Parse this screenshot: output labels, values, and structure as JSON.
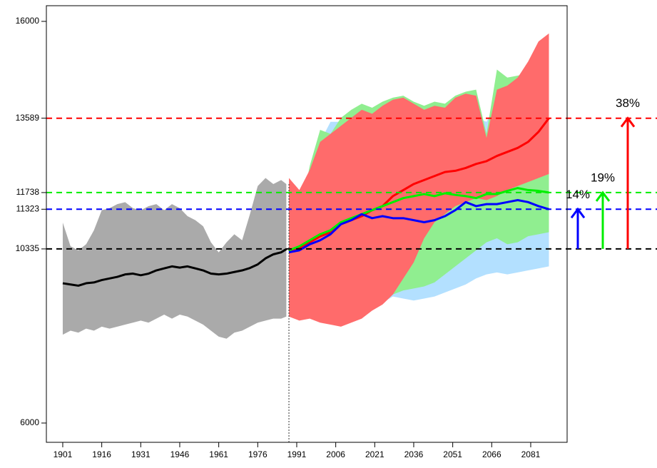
{
  "chart_data": {
    "type": "line",
    "xlim": [
      1894.7,
      2095
    ],
    "ylim": [
      5520,
      16390
    ],
    "xticks": [
      1901,
      1916,
      1931,
      1946,
      1961,
      1976,
      1991,
      2006,
      2021,
      2036,
      2051,
      2066,
      2081
    ],
    "yticks": [
      6000,
      10335,
      11323,
      11738,
      13589,
      16000
    ],
    "divider_x": 1988,
    "history": {
      "color": "#000000",
      "band_color": "#aaaaaa",
      "x": [
        1901,
        1904,
        1907,
        1910,
        1913,
        1916,
        1919,
        1922,
        1925,
        1928,
        1931,
        1934,
        1937,
        1940,
        1943,
        1946,
        1949,
        1952,
        1955,
        1958,
        1961,
        1964,
        1967,
        1970,
        1973,
        1976,
        1979,
        1982,
        1985,
        1987
      ],
      "values": [
        9480,
        9450,
        9420,
        9480,
        9500,
        9560,
        9600,
        9640,
        9700,
        9720,
        9680,
        9720,
        9800,
        9850,
        9900,
        9870,
        9900,
        9850,
        9800,
        9720,
        9700,
        9720,
        9760,
        9800,
        9860,
        9950,
        10100,
        10200,
        10250,
        10330
      ],
      "upper": [
        10990,
        10400,
        10300,
        10450,
        10800,
        11300,
        11350,
        11450,
        11500,
        11350,
        11300,
        11400,
        11450,
        11300,
        11450,
        11350,
        11150,
        11050,
        10900,
        10500,
        10250,
        10500,
        10700,
        10550,
        11200,
        11900,
        12100,
        11950,
        12050,
        11950
      ],
      "lower": [
        8200,
        8300,
        8250,
        8350,
        8300,
        8400,
        8350,
        8400,
        8450,
        8500,
        8550,
        8500,
        8600,
        8700,
        8600,
        8700,
        8650,
        8550,
        8450,
        8300,
        8150,
        8100,
        8250,
        8300,
        8400,
        8500,
        8550,
        8600,
        8600,
        8650
      ]
    },
    "future_x": [
      1988,
      1992,
      1996,
      2000,
      2004,
      2008,
      2012,
      2016,
      2020,
      2024,
      2028,
      2032,
      2036,
      2040,
      2044,
      2048,
      2052,
      2056,
      2060,
      2064,
      2068,
      2072,
      2076,
      2080,
      2084,
      2088
    ],
    "series": [
      {
        "color": "#0000ff",
        "band_color": "#b3e0ff",
        "values": [
          10250,
          10300,
          10450,
          10550,
          10700,
          10950,
          11050,
          11200,
          11100,
          11150,
          11100,
          11100,
          11050,
          11000,
          11050,
          11150,
          11300,
          11500,
          11400,
          11450,
          11450,
          11500,
          11550,
          11500,
          11400,
          11323
        ],
        "upper": [
          11200,
          11000,
          12200,
          13000,
          13500,
          13500,
          13700,
          13800,
          13700,
          13800,
          13900,
          13950,
          13850,
          13700,
          13800,
          13850,
          14000,
          14100,
          13600,
          13500,
          14000,
          14100,
          14200,
          14300,
          14400,
          14500
        ],
        "lower": [
          8700,
          8600,
          8650,
          8550,
          8500,
          8450,
          8550,
          8650,
          8850,
          9000,
          9150,
          9100,
          9050,
          9100,
          9150,
          9250,
          9350,
          9450,
          9600,
          9700,
          9750,
          9700,
          9750,
          9800,
          9850,
          9900
        ]
      },
      {
        "color": "#00ee00",
        "band_color": "#90ee90",
        "values": [
          10300,
          10400,
          10550,
          10700,
          10800,
          11000,
          11100,
          11200,
          11300,
          11400,
          11500,
          11600,
          11650,
          11700,
          11650,
          11720,
          11680,
          11650,
          11600,
          11700,
          11700,
          11780,
          11850,
          11800,
          11780,
          11738
        ],
        "upper": [
          11300,
          11100,
          12400,
          13300,
          13200,
          13600,
          13800,
          13950,
          13850,
          14000,
          14100,
          14150,
          14000,
          13900,
          14000,
          13950,
          14150,
          14250,
          14300,
          13200,
          14800,
          14600,
          14650,
          14700,
          14750,
          14800
        ],
        "lower": [
          8700,
          8600,
          8650,
          8550,
          8500,
          8450,
          8550,
          8650,
          8850,
          9000,
          9200,
          9300,
          9350,
          9400,
          9500,
          9700,
          9900,
          10100,
          10300,
          10500,
          10600,
          10450,
          10500,
          10650,
          10700,
          10750
        ]
      },
      {
        "color": "#ff0000",
        "band_color": "#ff6b6b",
        "values": [
          10300,
          10350,
          10500,
          10650,
          10750,
          10950,
          11050,
          11150,
          11300,
          11400,
          11650,
          11800,
          11950,
          12050,
          12150,
          12250,
          12280,
          12350,
          12450,
          12520,
          12650,
          12750,
          12850,
          13000,
          13250,
          13589
        ],
        "upper": [
          12100,
          11800,
          12300,
          13000,
          13200,
          13400,
          13600,
          13800,
          13700,
          13900,
          14050,
          14100,
          13950,
          13800,
          13900,
          13850,
          14100,
          14200,
          14150,
          13100,
          14300,
          14400,
          14600,
          15000,
          15500,
          15700
        ],
        "lower": [
          8650,
          8550,
          8600,
          8500,
          8450,
          8400,
          8500,
          8600,
          8800,
          8950,
          9200,
          9600,
          10000,
          10600,
          11000,
          11200,
          11400,
          11500,
          11600,
          11550,
          11650,
          11800,
          11900,
          12000,
          12100,
          12200
        ]
      }
    ],
    "reference_lines": {
      "values": [
        10335,
        11323,
        11738,
        13589
      ],
      "colors": [
        "#000000",
        "#0000ff",
        "#00ee00",
        "#ff0000"
      ]
    },
    "changes": {
      "values": [
        14,
        19,
        38
      ],
      "value_labels": [
        "14%",
        "19%",
        "38%"
      ],
      "colors": [
        "#0000ff",
        "#00ee00",
        "#ff0000"
      ]
    }
  }
}
